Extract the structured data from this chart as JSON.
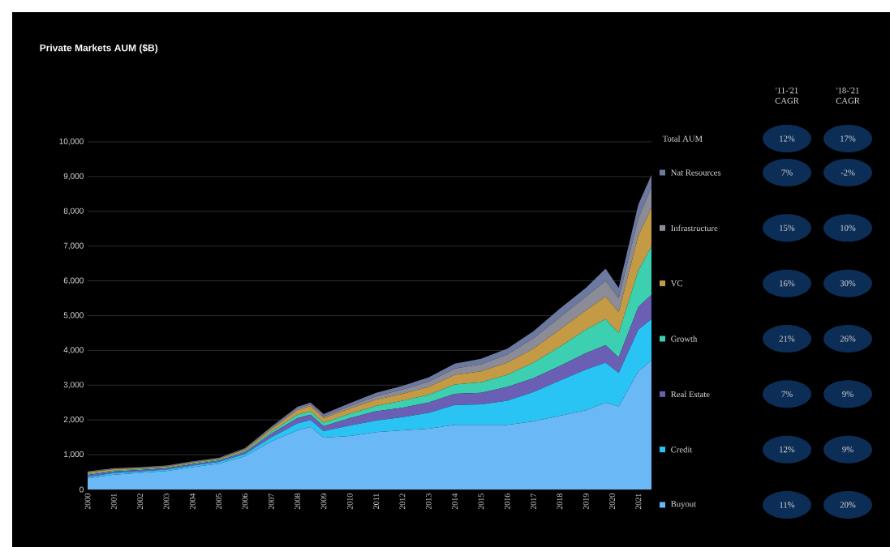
{
  "chart_data": {
    "type": "area",
    "title": "Private Markets AUM ($B)",
    "stacked": true,
    "grid": "y",
    "legend": "right",
    "x": [
      2000,
      2001,
      2002,
      2003,
      2004,
      2005,
      2006,
      2007,
      2008,
      2008.5,
      2009,
      2010,
      2011,
      2012,
      2013,
      2014,
      2015,
      2016,
      2017,
      2018,
      2019,
      2019.75,
      2020.25,
      2021,
      2021.5
    ],
    "xlim": [
      2000,
      2021.5
    ],
    "xticks": [
      2000,
      2001,
      2002,
      2003,
      2004,
      2005,
      2006,
      2007,
      2008,
      2009,
      2010,
      2011,
      2012,
      2013,
      2014,
      2015,
      2016,
      2017,
      2018,
      2019,
      2020,
      2021
    ],
    "ylim": [
      0,
      10000
    ],
    "yticks": [
      0,
      {
        "value": 1000,
        "label": "1,000"
      },
      {
        "value": 2000,
        "label": "2,000"
      },
      {
        "value": 3000,
        "label": "3,000"
      },
      {
        "value": 4000,
        "label": "4,000"
      },
      {
        "value": 5000,
        "label": "5,000"
      },
      {
        "value": 6000,
        "label": "6,000"
      },
      {
        "value": 7000,
        "label": "7,000"
      },
      {
        "value": 8000,
        "label": "8,000"
      },
      {
        "value": 9000,
        "label": "9,000"
      },
      {
        "value": 10000,
        "label": "10,000"
      }
    ],
    "series": [
      {
        "name": "Buyout",
        "color": "#6ab8f5",
        "values": [
          320,
          425,
          480,
          530,
          640,
          740,
          955,
          1380,
          1700,
          1800,
          1490,
          1540,
          1650,
          1700,
          1750,
          1860,
          1860,
          1860,
          1960,
          2120,
          2280,
          2500,
          2390,
          3400,
          3720
        ]
      },
      {
        "name": "Credit",
        "color": "#2ac4f4",
        "values": [
          40,
          45,
          40,
          40,
          50,
          50,
          65,
          120,
          200,
          200,
          190,
          300,
          330,
          380,
          450,
          570,
          590,
          690,
          840,
          1010,
          1170,
          1150,
          960,
          1200,
          1180
        ]
      },
      {
        "name": "Real Estate",
        "color": "#6b5fb5",
        "values": [
          60,
          50,
          40,
          40,
          40,
          40,
          50,
          100,
          150,
          150,
          140,
          210,
          270,
          270,
          300,
          320,
          330,
          400,
          400,
          420,
          470,
          500,
          450,
          650,
          700
        ]
      },
      {
        "name": "Growth",
        "color": "#3ccfb0",
        "values": [
          20,
          20,
          20,
          20,
          20,
          20,
          30,
          60,
          100,
          100,
          100,
          130,
          150,
          200,
          220,
          270,
          300,
          350,
          450,
          550,
          680,
          750,
          700,
          1050,
          1400
        ]
      },
      {
        "name": "VC",
        "color": "#c59a45",
        "values": [
          50,
          40,
          30,
          30,
          30,
          30,
          40,
          70,
          130,
          150,
          130,
          150,
          180,
          200,
          230,
          280,
          320,
          350,
          400,
          500,
          550,
          650,
          600,
          1000,
          1100
        ]
      },
      {
        "name": "Infrastructure",
        "color": "#8c8c99",
        "values": [
          10,
          10,
          10,
          10,
          10,
          10,
          20,
          30,
          50,
          50,
          50,
          70,
          100,
          120,
          150,
          180,
          200,
          230,
          300,
          350,
          400,
          450,
          400,
          500,
          600
        ]
      },
      {
        "name": "Nat Resources",
        "color": "#6d7aa0",
        "values": [
          20,
          20,
          20,
          20,
          20,
          20,
          30,
          40,
          50,
          50,
          70,
          80,
          100,
          110,
          120,
          140,
          160,
          170,
          200,
          250,
          250,
          350,
          300,
          400,
          350
        ]
      }
    ],
    "annotations": [
      "'11-'21 CAGR",
      "'18-'21 CAGR",
      "Total AUM",
      "12%",
      "17%",
      "7%",
      "-2%",
      "15%",
      "10%",
      "16%",
      "30%",
      "21%",
      "26%",
      "7%",
      "9%",
      "12%",
      "9%",
      "11%",
      "20%"
    ]
  }
}
